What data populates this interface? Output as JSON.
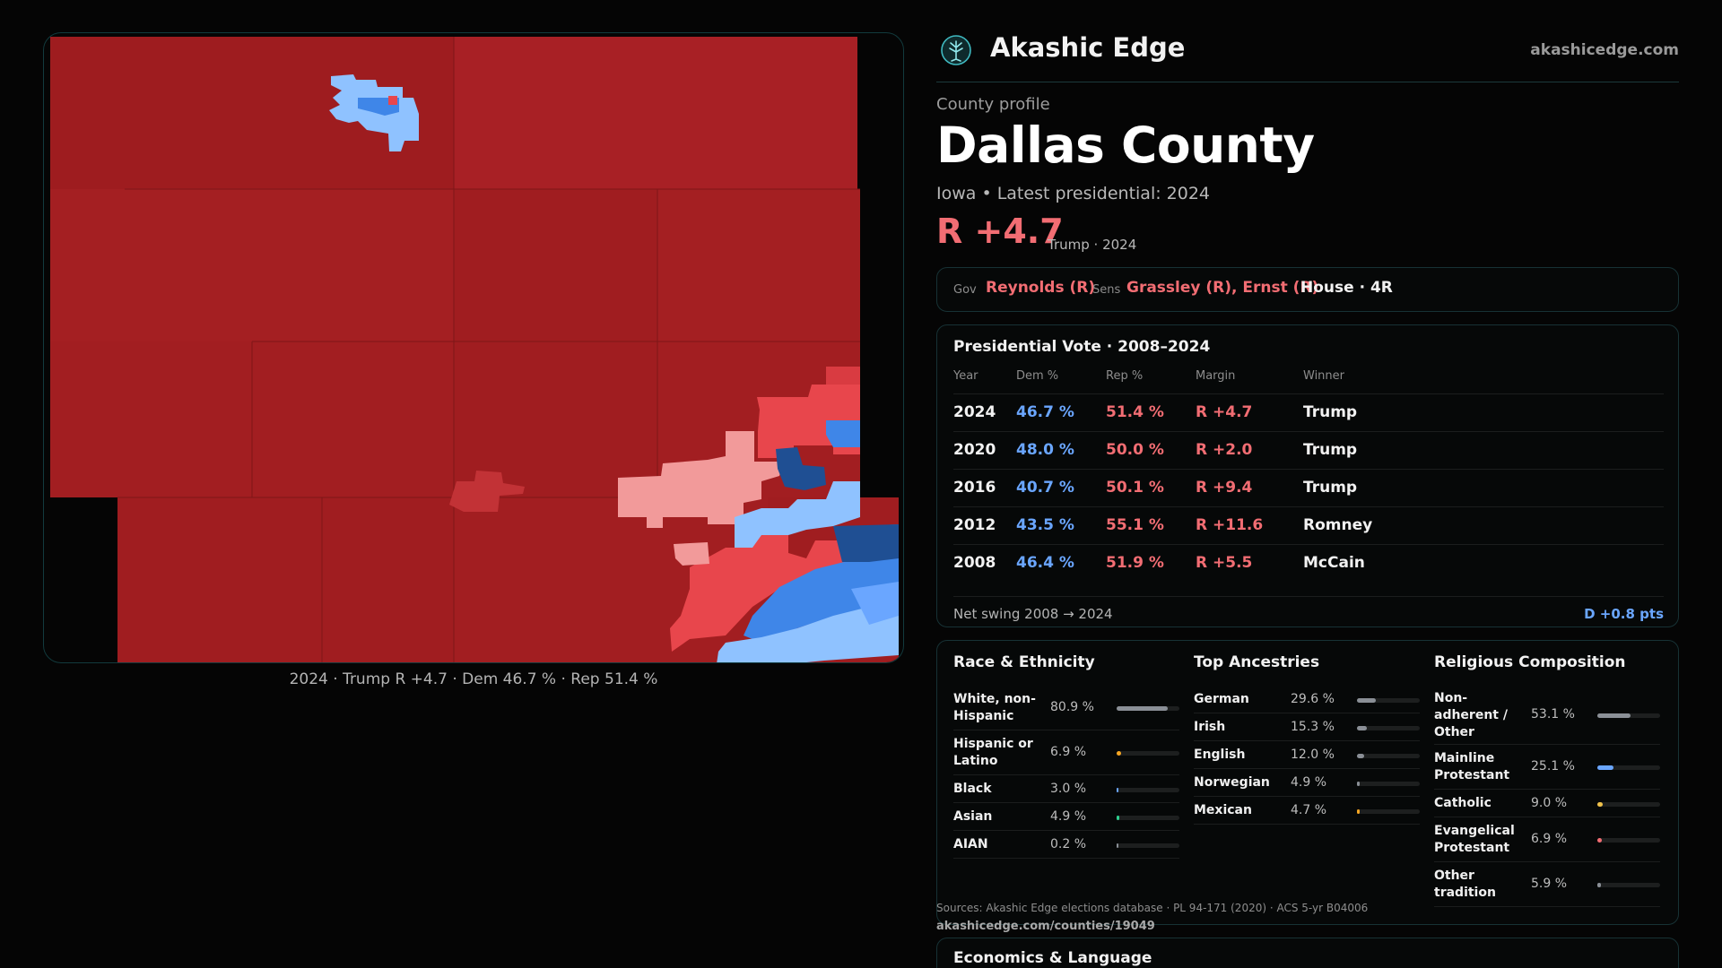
{
  "colors": {
    "rep_dark": "#9e1c1f",
    "rep": "#a82025",
    "rep_mid": "#b62a2e",
    "rep_light": "#e8464c",
    "rep_pale": "#f29a9a",
    "dem_pale": "#8fc2ff",
    "dem": "#6aa6ff",
    "dem_mid": "#3f86e8",
    "dem_dark": "#1f4f93",
    "accent_red": "#f26d73",
    "accent_blue": "#6aa6ff",
    "panel_border": "#173235",
    "muted_bar": "#8a8f96",
    "orange": "#f5a623",
    "teal": "#2ecf8f",
    "pink": "#f26d73",
    "amber": "#f0c24b"
  },
  "brand": {
    "logo_icon": "tree-of-life-icon",
    "name": "Akashic Edge",
    "url": "akashicedge.com"
  },
  "profile": {
    "label": "County profile",
    "county": "Dallas County",
    "subtitle": "Iowa • Latest presidential: 2024",
    "margin": "R +4.7",
    "margin_note": "Trump · 2024"
  },
  "map": {
    "caption": "2024 · Trump R +4.7 · Dem 46.7 % · Rep 51.4 %"
  },
  "officials": {
    "gov_label": "Gov",
    "gov": "Reynolds (R)",
    "sens_label": "Sens",
    "sens": "Grassley (R), Ernst (R)",
    "house": "House · 4R"
  },
  "presidential": {
    "title": "Presidential Vote · 2008–2024",
    "headers": [
      "Year",
      "Dem %",
      "Rep %",
      "Margin",
      "Winner"
    ],
    "rows": [
      {
        "year": "2024",
        "dem": "46.7 %",
        "rep": "51.4 %",
        "margin": "R +4.7",
        "winner": "Trump"
      },
      {
        "year": "2020",
        "dem": "48.0 %",
        "rep": "50.0 %",
        "margin": "R +2.0",
        "winner": "Trump"
      },
      {
        "year": "2016",
        "dem": "40.7 %",
        "rep": "50.1 %",
        "margin": "R +9.4",
        "winner": "Trump"
      },
      {
        "year": "2012",
        "dem": "43.5 %",
        "rep": "55.1 %",
        "margin": "R +11.6",
        "winner": "Romney"
      },
      {
        "year": "2008",
        "dem": "46.4 %",
        "rep": "51.9 %",
        "margin": "R +5.5",
        "winner": "McCain"
      }
    ],
    "swing_label": "Net swing 2008 → 2024",
    "swing_value": "D +0.8 pts"
  },
  "demographics": {
    "race": {
      "title": "Race & Ethnicity",
      "items": [
        {
          "name": "White, non-Hispanic",
          "pct": "80.9 %",
          "value": 80.9,
          "color": "#8a8f96"
        },
        {
          "name": "Hispanic or Latino",
          "pct": "6.9 %",
          "value": 6.9,
          "color": "#f5a623"
        },
        {
          "name": "Black",
          "pct": "3.0 %",
          "value": 3.0,
          "color": "#6aa6ff"
        },
        {
          "name": "Asian",
          "pct": "4.9 %",
          "value": 4.9,
          "color": "#2ecf8f"
        },
        {
          "name": "AIAN",
          "pct": "0.2 %",
          "value": 0.2,
          "color": "#8a8f96"
        }
      ]
    },
    "ancestry": {
      "title": "Top Ancestries",
      "items": [
        {
          "name": "German",
          "pct": "29.6 %",
          "value": 29.6,
          "color": "#8a8f96"
        },
        {
          "name": "Irish",
          "pct": "15.3 %",
          "value": 15.3,
          "color": "#8a8f96"
        },
        {
          "name": "English",
          "pct": "12.0 %",
          "value": 12.0,
          "color": "#8a8f96"
        },
        {
          "name": "Norwegian",
          "pct": "4.9 %",
          "value": 4.9,
          "color": "#8a8f96"
        },
        {
          "name": "Mexican",
          "pct": "4.7 %",
          "value": 4.7,
          "color": "#f5a623"
        }
      ]
    },
    "religion": {
      "title": "Religious Composition",
      "items": [
        {
          "name": "Non-adherent / Other",
          "pct": "53.1 %",
          "value": 53.1,
          "color": "#8a8f96"
        },
        {
          "name": "Mainline Protestant",
          "pct": "25.1 %",
          "value": 25.1,
          "color": "#6aa6ff"
        },
        {
          "name": "Catholic",
          "pct": "9.0 %",
          "value": 9.0,
          "color": "#f0c24b"
        },
        {
          "name": "Evangelical Protestant",
          "pct": "6.9 %",
          "value": 6.9,
          "color": "#f26d73"
        },
        {
          "name": "Other tradition",
          "pct": "5.9 %",
          "value": 5.9,
          "color": "#8a8f96"
        }
      ]
    }
  },
  "sources": {
    "text": "Sources: Akashic Edge elections database · PL 94-171 (2020) · ACS 5-yr B04006",
    "link": "akashicedge.com/counties/19049"
  },
  "economics": {
    "title": "Economics & Language"
  }
}
